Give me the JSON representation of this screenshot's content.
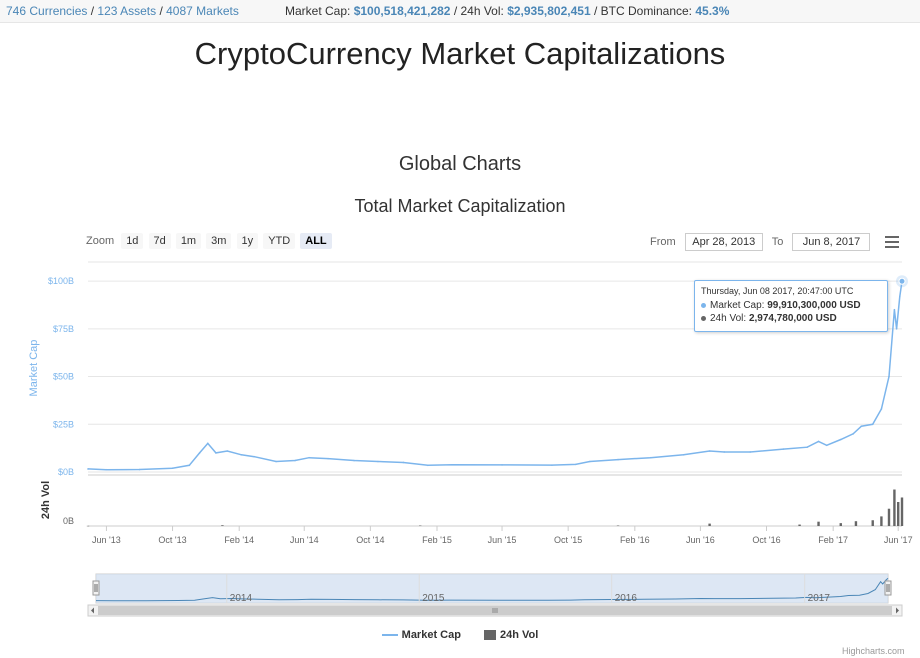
{
  "topbar": {
    "currencies": "746 Currencies",
    "assets": "123 Assets",
    "markets": "4087 Markets",
    "market_cap_label": "Market Cap:",
    "market_cap_value": "$100,518,421,282",
    "vol_label": "24h Vol:",
    "vol_value": "$2,935,802,451",
    "dominance_label": "BTC Dominance:",
    "dominance_value": "45.3%"
  },
  "page_title": "CryptoCurrency Market Capitalizations",
  "section_title": "Global Charts",
  "zoom": {
    "label": "Zoom",
    "buttons": [
      "1d",
      "7d",
      "1m",
      "3m",
      "1y",
      "YTD",
      "ALL"
    ],
    "active": "ALL"
  },
  "range": {
    "from_label": "From",
    "from_value": "Apr 28, 2013",
    "to_label": "To",
    "to_value": "Jun 8, 2017"
  },
  "tooltip": {
    "date": "Thursday, Jun 08 2017, 20:47:00 UTC",
    "cap_label": "Market Cap:",
    "cap_value": "99,910,300,000 USD",
    "vol_label": "24h Vol:",
    "vol_value": "2,974,780,000 USD"
  },
  "navigator": {
    "year_labels": [
      "2014",
      "2015",
      "2016",
      "2017"
    ]
  },
  "credits": "Highcharts.com",
  "colors": {
    "market_cap": "#7cb5ec",
    "volume": "#666666",
    "accent": "#4a86b6"
  },
  "chart_data": {
    "type": "line",
    "title": "Total Market Capitalization",
    "xlabel": "",
    "ylabel": "Market Cap",
    "ylabel_volume": "24h Vol",
    "x_tick_labels": [
      "Jun '13",
      "Oct '13",
      "Feb '14",
      "Jun '14",
      "Oct '14",
      "Feb '15",
      "Jun '15",
      "Oct '15",
      "Feb '16",
      "Jun '16",
      "Oct '16",
      "Feb '17",
      "Jun '17"
    ],
    "y_tick_labels": [
      "$0B",
      "$25B",
      "$50B",
      "$75B",
      "$100B"
    ],
    "y_tick_values": [
      0,
      25,
      50,
      75,
      100
    ],
    "volume_tick_labels": [
      "0B"
    ],
    "ylim": [
      0,
      110
    ],
    "volume_ylim": [
      0,
      5
    ],
    "grid": true,
    "legend_position": "bottom",
    "series": [
      {
        "name": "Market Cap",
        "unit": "USD billions",
        "x": [
          "2013-04-28",
          "2013-06-01",
          "2013-08-01",
          "2013-10-01",
          "2013-11-01",
          "2013-11-20",
          "2013-12-05",
          "2013-12-20",
          "2014-01-10",
          "2014-02-05",
          "2014-03-01",
          "2014-04-10",
          "2014-05-15",
          "2014-06-10",
          "2014-07-15",
          "2014-09-01",
          "2014-10-15",
          "2014-12-01",
          "2015-01-15",
          "2015-03-01",
          "2015-06-01",
          "2015-09-01",
          "2015-10-15",
          "2015-11-10",
          "2016-01-01",
          "2016-03-01",
          "2016-05-01",
          "2016-06-18",
          "2016-07-15",
          "2016-09-01",
          "2016-11-01",
          "2016-12-15",
          "2017-01-05",
          "2017-01-20",
          "2017-02-15",
          "2017-03-10",
          "2017-03-25",
          "2017-04-15",
          "2017-05-01",
          "2017-05-15",
          "2017-05-25",
          "2017-05-29",
          "2017-06-04",
          "2017-06-08"
        ],
        "values": [
          1.6,
          1.2,
          1.3,
          2.0,
          3.5,
          10.0,
          15.0,
          10.0,
          11.0,
          9.0,
          8.0,
          5.5,
          6.0,
          7.5,
          7.0,
          6.0,
          5.5,
          5.0,
          3.5,
          3.8,
          3.7,
          3.6,
          4.0,
          5.5,
          6.5,
          7.5,
          9.0,
          11.0,
          10.5,
          10.5,
          12.0,
          13.0,
          16.0,
          14.0,
          17.0,
          20.0,
          24.0,
          25.0,
          33.0,
          50.0,
          85.0,
          75.0,
          92.0,
          99.91
        ]
      },
      {
        "name": "24h Vol",
        "unit": "USD billions",
        "x": [
          "2013-04-28",
          "2014-01-01",
          "2015-01-01",
          "2016-01-01",
          "2016-06-18",
          "2016-12-01",
          "2017-01-05",
          "2017-02-15",
          "2017-03-15",
          "2017-04-15",
          "2017-05-01",
          "2017-05-15",
          "2017-05-25",
          "2017-06-01",
          "2017-06-08"
        ],
        "values": [
          0.02,
          0.08,
          0.05,
          0.05,
          0.25,
          0.15,
          0.45,
          0.3,
          0.5,
          0.6,
          1.0,
          1.8,
          3.8,
          2.5,
          2.97
        ]
      }
    ]
  }
}
